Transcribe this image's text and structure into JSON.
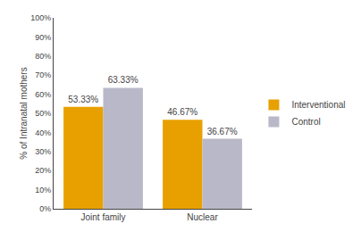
{
  "chart_data": {
    "type": "bar",
    "categories": [
      "Joint family",
      "Nuclear"
    ],
    "series": [
      {
        "name": "Interventional",
        "color": "#E8A000",
        "values": [
          53.33,
          46.67
        ],
        "value_labels": [
          "53.33%",
          "46.67%"
        ]
      },
      {
        "name": "Control",
        "color": "#B8B8C8",
        "values": [
          63.33,
          36.67
        ],
        "value_labels": [
          "63.33%",
          "36.67%"
        ]
      }
    ],
    "ylabel": "% of Intranatal mothers",
    "ylim": [
      0,
      100
    ],
    "yticks": [
      {
        "value": 0,
        "label": "0%"
      },
      {
        "value": 10,
        "label": "10%"
      },
      {
        "value": 20,
        "label": "20%"
      },
      {
        "value": 30,
        "label": "30%"
      },
      {
        "value": 40,
        "label": "40%"
      },
      {
        "value": 50,
        "label": "50%"
      },
      {
        "value": 60,
        "label": "60%"
      },
      {
        "value": 70,
        "label": "70%"
      },
      {
        "value": 80,
        "label": "80%"
      },
      {
        "value": 90,
        "label": "90%"
      },
      {
        "value": 100,
        "label": "100%"
      }
    ],
    "grid": false,
    "legend": "right",
    "data_labels": true
  }
}
